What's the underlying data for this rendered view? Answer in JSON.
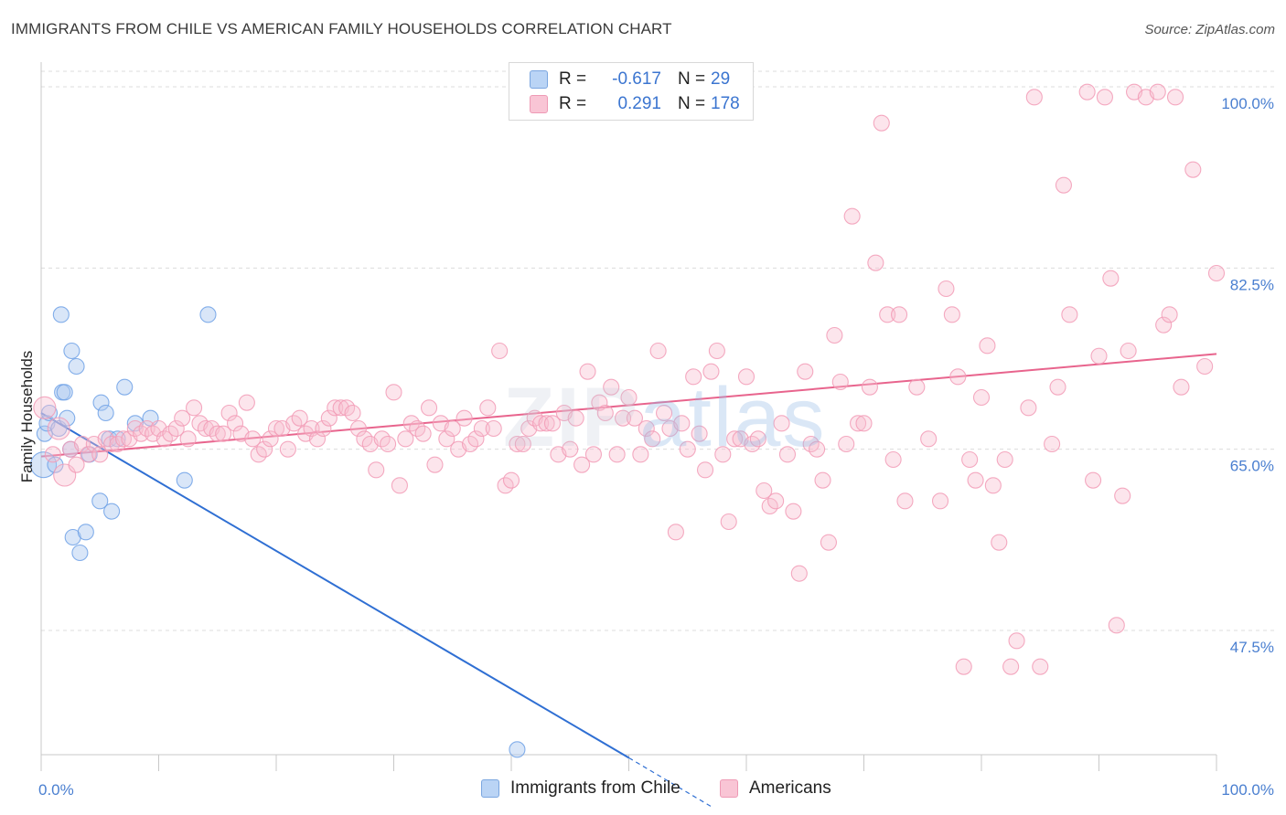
{
  "title": "IMMIGRANTS FROM CHILE VS AMERICAN FAMILY HOUSEHOLDS CORRELATION CHART",
  "source": "Source: ZipAtlas.com",
  "watermark": {
    "part1": "ZIP",
    "part2": "atlas"
  },
  "legend": {
    "rows": [
      {
        "r_label": "R =",
        "r_value": "-0.617",
        "n_label": "N =",
        "n_value": "29",
        "color": "#bad4f5",
        "border": "#7aa6e0"
      },
      {
        "r_label": "R =",
        "r_value": "0.291",
        "n_label": "N =",
        "n_value": "178",
        "color": "#f9c5d5",
        "border": "#ee9ab5"
      }
    ]
  },
  "bottom_legend": [
    {
      "label": "Immigrants from Chile",
      "color": "#bad4f5",
      "border": "#7aa6e0"
    },
    {
      "label": "Americans",
      "color": "#f9c5d5",
      "border": "#ee9ab5"
    }
  ],
  "chart_data": {
    "type": "scatter",
    "title": "IMMIGRANTS FROM CHILE VS AMERICAN FAMILY HOUSEHOLDS CORRELATION CHART",
    "xlabel": "",
    "ylabel": "Family Households",
    "xlim": [
      0,
      100
    ],
    "ylim": [
      35.5,
      101.5
    ],
    "x_tick_labels": [
      "0.0%",
      "100.0%"
    ],
    "y_ticks": [
      47.5,
      65.0,
      82.5,
      100.0
    ],
    "y_tick_labels": [
      "47.5%",
      "65.0%",
      "82.5%",
      "100.0%"
    ],
    "grid": true,
    "series": [
      {
        "name": "Immigrants from Chile",
        "color": "#6fa1e6",
        "line_color": "#2f6fd3",
        "trend": {
          "x0": 0,
          "y0": 68.5,
          "x1": 50,
          "y1": 35.2,
          "dashed_to_x": 57,
          "dashed_to_y": 30.5
        },
        "points": [
          [
            0.2,
            63.5
          ],
          [
            0.3,
            66.5
          ],
          [
            0.5,
            67.5
          ],
          [
            0.7,
            68.5
          ],
          [
            1.2,
            63.5
          ],
          [
            1.5,
            67
          ],
          [
            1.7,
            78
          ],
          [
            1.8,
            70.5
          ],
          [
            2,
            70.5
          ],
          [
            2.2,
            68
          ],
          [
            2.5,
            65
          ],
          [
            2.6,
            74.5
          ],
          [
            2.7,
            56.5
          ],
          [
            3,
            73
          ],
          [
            3.3,
            55
          ],
          [
            3.8,
            57
          ],
          [
            4.1,
            64.5
          ],
          [
            5,
            60
          ],
          [
            5.1,
            69.5
          ],
          [
            5.5,
            68.5
          ],
          [
            5.8,
            66
          ],
          [
            6,
            59
          ],
          [
            6.5,
            66
          ],
          [
            7.1,
            71
          ],
          [
            8,
            67.5
          ],
          [
            9.3,
            68
          ],
          [
            12.2,
            62
          ],
          [
            14.2,
            78
          ],
          [
            40.5,
            36
          ]
        ]
      },
      {
        "name": "Americans",
        "color": "#f29bb6",
        "line_color": "#e8648d",
        "trend": {
          "x0": 0,
          "y0": 64.3,
          "x1": 100,
          "y1": 74.2
        },
        "points": [
          [
            0.3,
            69
          ],
          [
            1,
            64.5
          ],
          [
            1.5,
            67
          ],
          [
            2,
            62.5
          ],
          [
            2.5,
            65
          ],
          [
            3,
            63.5
          ],
          [
            3.5,
            65.5
          ],
          [
            4,
            64.5
          ],
          [
            4.5,
            65.5
          ],
          [
            5,
            64.5
          ],
          [
            5.5,
            66
          ],
          [
            6,
            65.5
          ],
          [
            6.5,
            65.5
          ],
          [
            7,
            66
          ],
          [
            7.5,
            66
          ],
          [
            8,
            67
          ],
          [
            8.5,
            66.5
          ],
          [
            9,
            67
          ],
          [
            9.5,
            66.5
          ],
          [
            10,
            67
          ],
          [
            10.5,
            66
          ],
          [
            11,
            66.5
          ],
          [
            11.5,
            67
          ],
          [
            12,
            68
          ],
          [
            12.5,
            66
          ],
          [
            13,
            69
          ],
          [
            13.5,
            67.5
          ],
          [
            14,
            67
          ],
          [
            14.5,
            67
          ],
          [
            15,
            66.5
          ],
          [
            15.5,
            66.5
          ],
          [
            16,
            68.5
          ],
          [
            16.5,
            67.5
          ],
          [
            17,
            66.5
          ],
          [
            17.5,
            69.5
          ],
          [
            18,
            66
          ],
          [
            18.5,
            64.5
          ],
          [
            19,
            65
          ],
          [
            19.5,
            66
          ],
          [
            20,
            67
          ],
          [
            20.5,
            67
          ],
          [
            21,
            65
          ],
          [
            21.5,
            67.5
          ],
          [
            22,
            68
          ],
          [
            22.5,
            66.5
          ],
          [
            23,
            67
          ],
          [
            23.5,
            66
          ],
          [
            24,
            67
          ],
          [
            24.5,
            68
          ],
          [
            25,
            69
          ],
          [
            25.5,
            69
          ],
          [
            26,
            69
          ],
          [
            26.5,
            68.5
          ],
          [
            27,
            67
          ],
          [
            27.5,
            66
          ],
          [
            28,
            65.5
          ],
          [
            28.5,
            63
          ],
          [
            29,
            66
          ],
          [
            29.5,
            65.5
          ],
          [
            30,
            70.5
          ],
          [
            30.5,
            61.5
          ],
          [
            31,
            66
          ],
          [
            31.5,
            67.5
          ],
          [
            32,
            67
          ],
          [
            32.5,
            66.5
          ],
          [
            33,
            69
          ],
          [
            33.5,
            63.5
          ],
          [
            34,
            67.5
          ],
          [
            34.5,
            66
          ],
          [
            35,
            67
          ],
          [
            35.5,
            65
          ],
          [
            36,
            68
          ],
          [
            36.5,
            65.5
          ],
          [
            37,
            66
          ],
          [
            37.5,
            67
          ],
          [
            38,
            69
          ],
          [
            38.5,
            67
          ],
          [
            39,
            74.5
          ],
          [
            39.5,
            61.5
          ],
          [
            40,
            62
          ],
          [
            40.5,
            65.5
          ],
          [
            41,
            65.5
          ],
          [
            41.5,
            67
          ],
          [
            42,
            68
          ],
          [
            42.5,
            67.5
          ],
          [
            43,
            67.5
          ],
          [
            43.5,
            67.5
          ],
          [
            44,
            64.5
          ],
          [
            44.5,
            68.5
          ],
          [
            45,
            65
          ],
          [
            45.5,
            68
          ],
          [
            46,
            63.5
          ],
          [
            46.5,
            72.5
          ],
          [
            47,
            64.5
          ],
          [
            47.5,
            69.5
          ],
          [
            48,
            68.5
          ],
          [
            48.5,
            71
          ],
          [
            49,
            64.5
          ],
          [
            49.5,
            68
          ],
          [
            50,
            70
          ],
          [
            50.5,
            68
          ],
          [
            51,
            64.5
          ],
          [
            51.5,
            67
          ],
          [
            52,
            66
          ],
          [
            52.5,
            74.5
          ],
          [
            53,
            68.5
          ],
          [
            53.5,
            67
          ],
          [
            54,
            57
          ],
          [
            54.5,
            67.5
          ],
          [
            55,
            65
          ],
          [
            55.5,
            72
          ],
          [
            56,
            66.5
          ],
          [
            56.5,
            63
          ],
          [
            57,
            72.5
          ],
          [
            57.5,
            74.5
          ],
          [
            58,
            64.5
          ],
          [
            58.5,
            58
          ],
          [
            59,
            66
          ],
          [
            59.5,
            66
          ],
          [
            60,
            72
          ],
          [
            60.5,
            65.5
          ],
          [
            61,
            66
          ],
          [
            61.5,
            61
          ],
          [
            62,
            59.5
          ],
          [
            62.5,
            60
          ],
          [
            63,
            67.5
          ],
          [
            63.5,
            64.5
          ],
          [
            64,
            59
          ],
          [
            64.5,
            53
          ],
          [
            65,
            72.5
          ],
          [
            65.5,
            65.5
          ],
          [
            66,
            65
          ],
          [
            66.5,
            62
          ],
          [
            67,
            56
          ],
          [
            67.5,
            76
          ],
          [
            68,
            71.5
          ],
          [
            68.5,
            65.5
          ],
          [
            69,
            87.5
          ],
          [
            69.5,
            67.5
          ],
          [
            70,
            67.5
          ],
          [
            70.5,
            71
          ],
          [
            71,
            83
          ],
          [
            71.5,
            96.5
          ],
          [
            72,
            78
          ],
          [
            72.5,
            64
          ],
          [
            73,
            78
          ],
          [
            73.5,
            60
          ],
          [
            74.5,
            71
          ],
          [
            75.5,
            66
          ],
          [
            76.5,
            60
          ],
          [
            77,
            80.5
          ],
          [
            77.5,
            78
          ],
          [
            78,
            72
          ],
          [
            78.5,
            44
          ],
          [
            79,
            64
          ],
          [
            79.5,
            62
          ],
          [
            80,
            70
          ],
          [
            80.5,
            75
          ],
          [
            81,
            61.5
          ],
          [
            81.5,
            56
          ],
          [
            82,
            64
          ],
          [
            82.5,
            44
          ],
          [
            83,
            46.5
          ],
          [
            84,
            69
          ],
          [
            84.5,
            99
          ],
          [
            85,
            44
          ],
          [
            86,
            65.5
          ],
          [
            86.5,
            71
          ],
          [
            87,
            90.5
          ],
          [
            87.5,
            78
          ],
          [
            89,
            99.5
          ],
          [
            89.5,
            62
          ],
          [
            90,
            74
          ],
          [
            90.5,
            99
          ],
          [
            91,
            81.5
          ],
          [
            91.5,
            48
          ],
          [
            92,
            60.5
          ],
          [
            92.5,
            74.5
          ],
          [
            93,
            99.5
          ],
          [
            94,
            99
          ],
          [
            95,
            99.5
          ],
          [
            95.5,
            77
          ],
          [
            96,
            78
          ],
          [
            96.5,
            99
          ],
          [
            97,
            71
          ],
          [
            98,
            92
          ],
          [
            99,
            73
          ],
          [
            100,
            82
          ]
        ]
      }
    ]
  }
}
